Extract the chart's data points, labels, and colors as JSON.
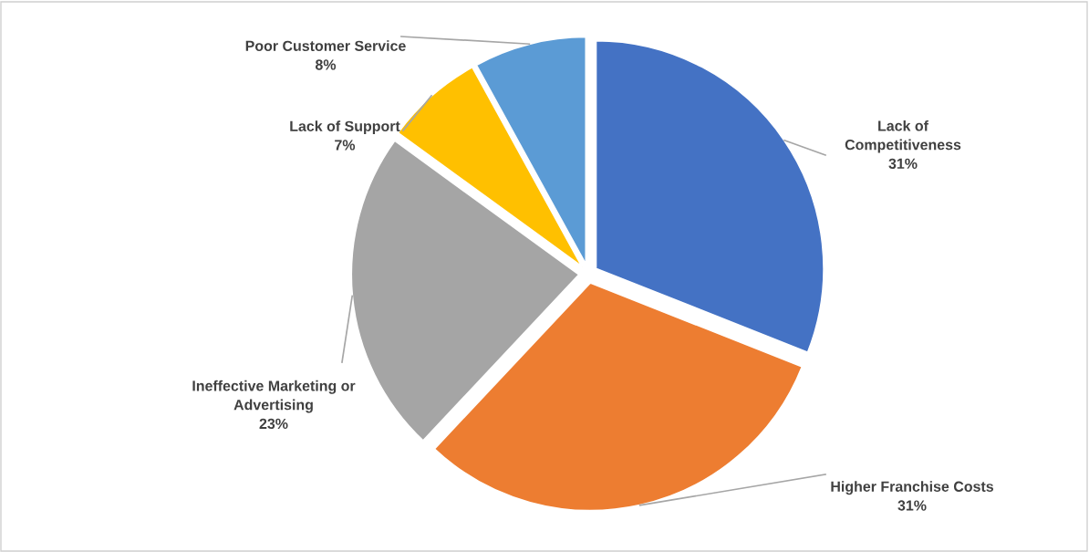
{
  "chart_data": {
    "type": "pie",
    "categories": [
      "Lack of Competitiveness",
      "Higher Franchise Costs",
      "Ineffective Marketing or Advertising",
      "Lack of Support",
      "Poor Customer Service"
    ],
    "values": [
      31,
      31,
      23,
      7,
      8
    ],
    "colors": [
      "#4472c4",
      "#ed7d31",
      "#a5a5a5",
      "#ffc000",
      "#5b9bd5"
    ],
    "value_labels": [
      "31%",
      "31%",
      "23%",
      "7%",
      "8%"
    ],
    "legend": false
  }
}
